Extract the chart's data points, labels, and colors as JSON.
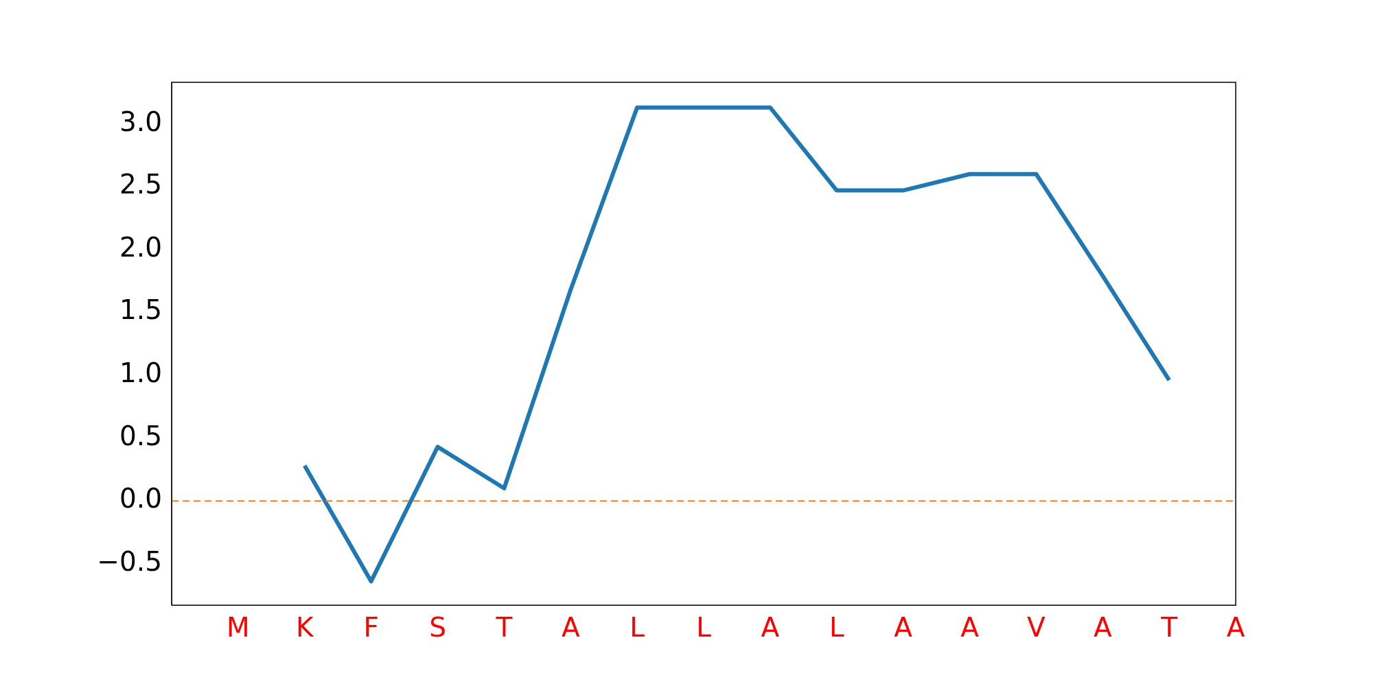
{
  "chart_data": {
    "type": "line",
    "categories": [
      null,
      "M",
      "K",
      "F",
      "S",
      "T",
      "A",
      "L",
      "L",
      "A",
      "L",
      "A",
      "A",
      "V",
      "A",
      "T",
      "A"
    ],
    "series": [
      {
        "color": "#1f77b4",
        "values": [
          null,
          null,
          0.28,
          -0.64,
          0.43,
          0.1,
          1.68,
          3.13,
          3.13,
          3.13,
          2.47,
          2.47,
          2.6,
          2.6,
          1.79,
          0.96,
          null
        ]
      }
    ],
    "ylim": [
      -0.83,
      3.33
    ],
    "yticks": [
      {
        "value": -0.5,
        "label": "−0.5"
      },
      {
        "value": 0,
        "label": "0.0"
      },
      {
        "value": 0.5,
        "label": "0.5"
      },
      {
        "value": 1,
        "label": "1.0"
      },
      {
        "value": 1.5,
        "label": "1.5"
      },
      {
        "value": 2,
        "label": "2.0"
      },
      {
        "value": 2.5,
        "label": "2.5"
      },
      {
        "value": 3,
        "label": "3.0"
      }
    ],
    "ref_lines": [
      {
        "axis": "y",
        "value": 0,
        "color": "#ff7f0e",
        "line_style": "dashed"
      }
    ],
    "grid": false,
    "legend": false,
    "marker": "none",
    "line_style": "solid"
  }
}
